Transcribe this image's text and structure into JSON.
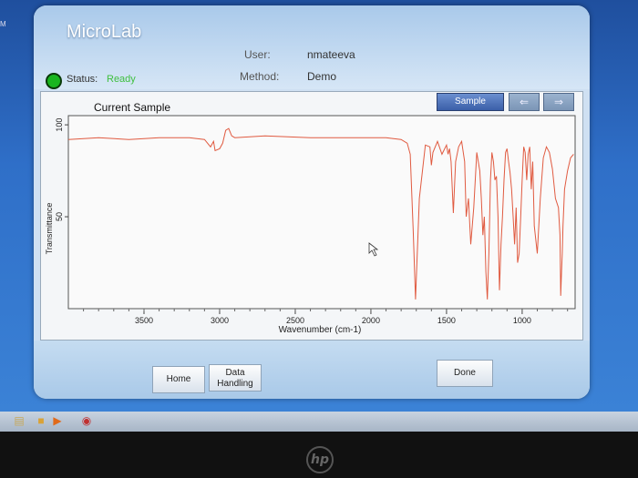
{
  "window": {
    "corner_text": "M"
  },
  "header": {
    "app_title": "MicroLab",
    "user_label": "User:",
    "user_value": "nmateeva",
    "method_label": "Method:",
    "method_value": "Demo",
    "status_label": "Status:",
    "status_value": "Ready"
  },
  "panel": {
    "title": "Current Sample",
    "sample_button": "Sample",
    "prev_icon": "arrow-left-icon",
    "next_icon": "arrow-right-icon"
  },
  "chart_data": {
    "type": "line",
    "title": "",
    "xlabel": "Wavenumber (cm-1)",
    "ylabel": "Transmittance",
    "x_ticks": [
      "3500",
      "3000",
      "2500",
      "2000",
      "1500",
      "1000"
    ],
    "y_ticks": [
      "50",
      "100"
    ],
    "xlim": [
      4000,
      650
    ],
    "ylim": [
      0,
      105
    ],
    "grid": false,
    "series": [
      {
        "color": "#e05a40",
        "x": [
          4000,
          3800,
          3600,
          3400,
          3200,
          3100,
          3060,
          3040,
          3030,
          3000,
          2980,
          2960,
          2940,
          2920,
          2900,
          2700,
          2400,
          2100,
          2000,
          1900,
          1800,
          1760,
          1740,
          1720,
          1705,
          1680,
          1640,
          1610,
          1600,
          1590,
          1560,
          1530,
          1500,
          1490,
          1480,
          1470,
          1455,
          1440,
          1420,
          1400,
          1380,
          1370,
          1355,
          1340,
          1320,
          1300,
          1280,
          1270,
          1260,
          1250,
          1240,
          1230,
          1220,
          1210,
          1200,
          1190,
          1180,
          1170,
          1160,
          1150,
          1140,
          1130,
          1120,
          1110,
          1100,
          1090,
          1080,
          1070,
          1060,
          1050,
          1040,
          1030,
          1020,
          1010,
          1000,
          990,
          980,
          970,
          960,
          950,
          940,
          930,
          920,
          900,
          880,
          860,
          840,
          820,
          800,
          780,
          760,
          750,
          745,
          740,
          735,
          730,
          720,
          700,
          680,
          660
        ],
        "y": [
          92,
          93,
          92,
          93,
          93,
          92,
          88,
          91,
          86,
          87,
          90,
          97,
          98,
          94,
          93,
          94,
          93,
          93,
          93,
          93,
          92,
          90,
          84,
          42,
          5,
          60,
          89,
          88,
          78,
          85,
          91,
          84,
          89,
          84,
          87,
          80,
          52,
          80,
          88,
          91,
          80,
          50,
          60,
          35,
          55,
          85,
          75,
          60,
          40,
          50,
          20,
          5,
          30,
          70,
          85,
          80,
          70,
          72,
          50,
          10,
          35,
          50,
          70,
          85,
          87,
          80,
          74,
          65,
          50,
          35,
          55,
          25,
          30,
          50,
          70,
          88,
          85,
          70,
          84,
          88,
          65,
          80,
          45,
          30,
          60,
          82,
          88,
          85,
          76,
          60,
          55,
          40,
          7,
          20,
          30,
          45,
          65,
          75,
          82,
          84
        ]
      }
    ]
  },
  "bottom": {
    "home_button": "Home",
    "data_button_line1": "Data",
    "data_button_line2": "Handling",
    "done_button": "Done"
  },
  "taskbar": {
    "icons": [
      "file-icon",
      "folder-icon",
      "media-icon",
      "app-icon"
    ]
  },
  "bezel": {
    "logo": "hp"
  }
}
